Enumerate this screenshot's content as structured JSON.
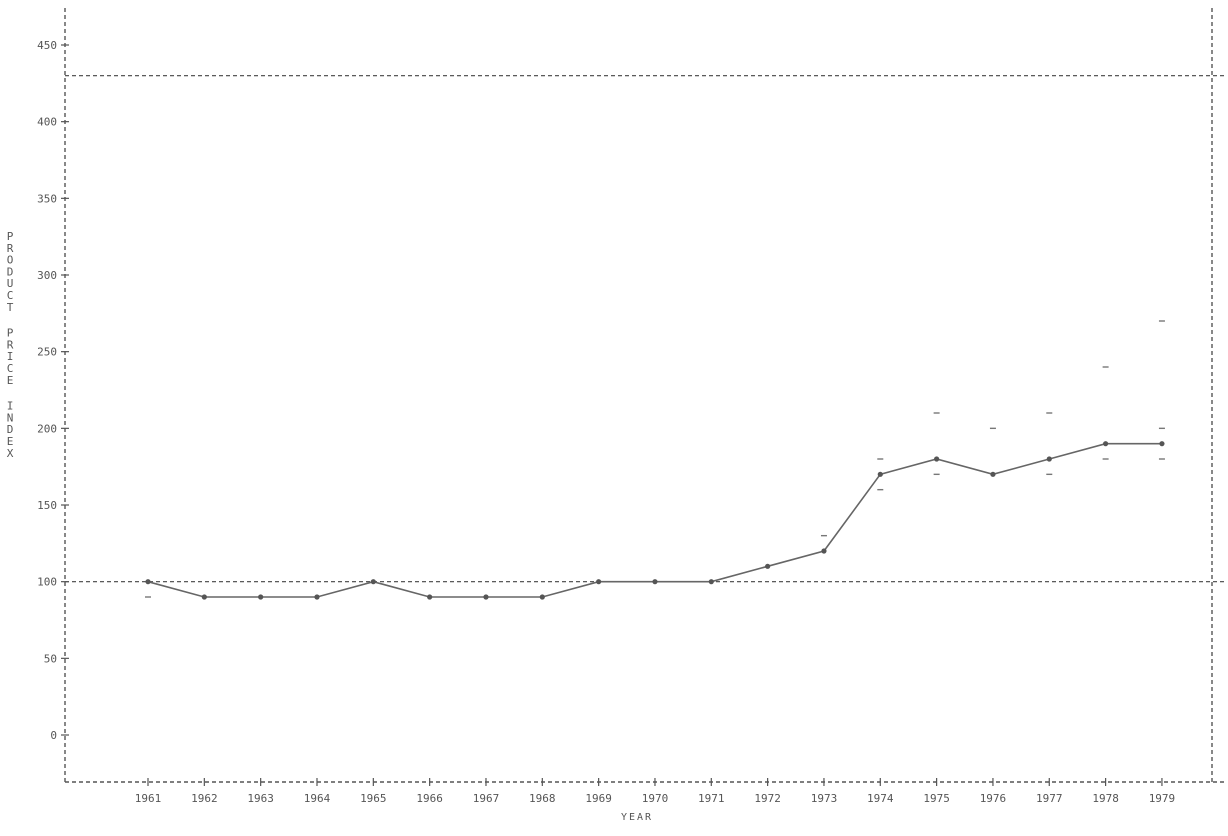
{
  "chart_data": {
    "type": "line",
    "title": "",
    "xlabel": "YEAR",
    "ylabel": "PRODUCT PRICE INDEX",
    "ylim": [
      -25,
      475
    ],
    "yticks": [
      0,
      50,
      100,
      150,
      200,
      250,
      300,
      350,
      400,
      450
    ],
    "ytick_labels": [
      "0",
      "50",
      "100",
      "150",
      "200",
      "250",
      "300",
      "350",
      "400",
      "450"
    ],
    "categories": [
      "1961",
      "1962",
      "1963",
      "1964",
      "1965",
      "1966",
      "1967",
      "1968",
      "1969",
      "1970",
      "1971",
      "1972",
      "1973",
      "1974",
      "1975",
      "1976",
      "1977",
      "1978",
      "1979"
    ],
    "series": [
      {
        "values": [
          100,
          90,
          90,
          90,
          100,
          90,
          90,
          90,
          100,
          100,
          100,
          110,
          120,
          170,
          180,
          170,
          180,
          190,
          190
        ]
      }
    ],
    "range_markers": [
      {
        "year": "1961",
        "values": [
          90
        ]
      },
      {
        "year": "1973",
        "values": [
          130
        ]
      },
      {
        "year": "1974",
        "values": [
          160,
          180
        ]
      },
      {
        "year": "1975",
        "values": [
          170,
          210
        ]
      },
      {
        "year": "1976",
        "values": [
          200
        ]
      },
      {
        "year": "1977",
        "values": [
          170,
          210
        ]
      },
      {
        "year": "1978",
        "values": [
          180,
          240
        ]
      },
      {
        "year": "1979",
        "values": [
          180,
          200,
          270
        ]
      }
    ],
    "reference_lines": [
      100,
      430
    ],
    "grid": false,
    "legend": "none"
  }
}
